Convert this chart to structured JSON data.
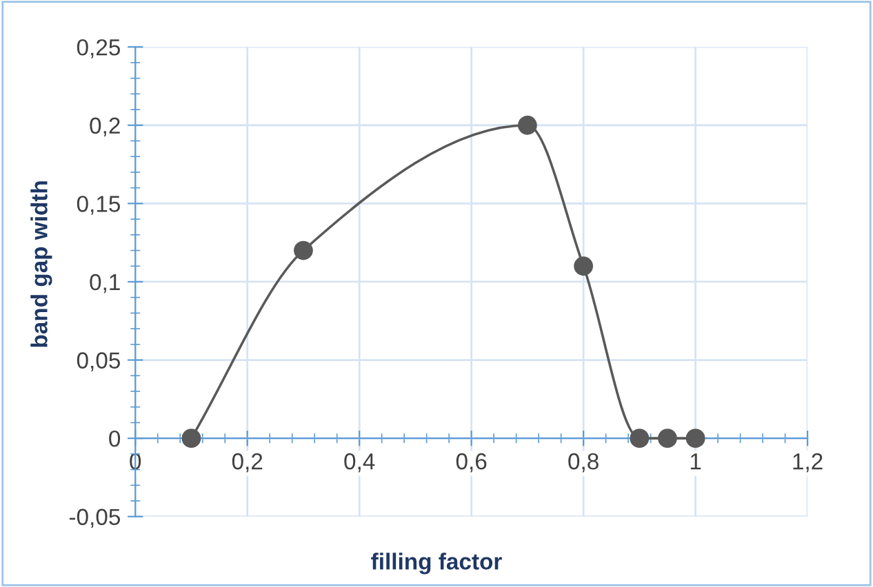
{
  "chart_data": {
    "type": "line",
    "xlabel": "filling factor",
    "ylabel": "band gap width",
    "series": [
      {
        "color": "#595959",
        "x": [
          0.1,
          0.3,
          0.7,
          0.8,
          0.9,
          0.95,
          1.0
        ],
        "values": [
          0,
          0.12,
          0.2,
          0.11,
          0,
          0,
          0
        ]
      }
    ],
    "marker": "circle",
    "line_style": "solid",
    "grid": true,
    "xlim": [
      0,
      1.2
    ],
    "xticks": [
      {
        "value": 0,
        "label": "0"
      },
      {
        "value": 0.2,
        "label": "0,2"
      },
      {
        "value": 0.4,
        "label": "0,4"
      },
      {
        "value": 0.6,
        "label": "0,6"
      },
      {
        "value": 0.8,
        "label": "0,8"
      },
      {
        "value": 1,
        "label": "1"
      },
      {
        "value": 1.2,
        "label": "1,2"
      }
    ],
    "ylim": [
      -0.05,
      0.25
    ],
    "yticks": [
      {
        "value": -0.05,
        "label": "-0,05"
      },
      {
        "value": 0,
        "label": "0"
      },
      {
        "value": 0.05,
        "label": "0,05"
      },
      {
        "value": 0.1,
        "label": "0,1"
      },
      {
        "value": 0.15,
        "label": "0,15"
      },
      {
        "value": 0.2,
        "label": "0,2"
      },
      {
        "value": 0.25,
        "label": "0,25"
      }
    ]
  }
}
